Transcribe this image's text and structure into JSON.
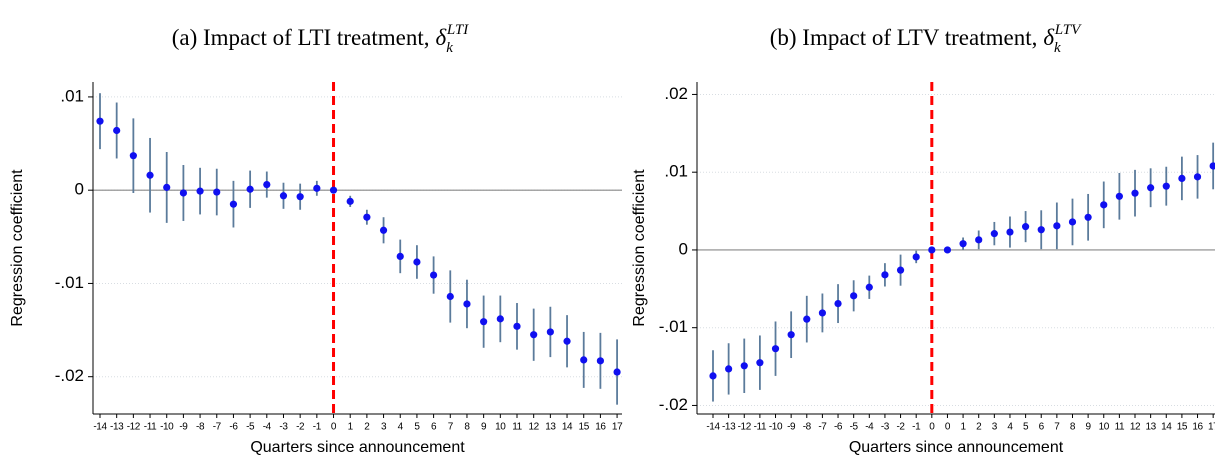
{
  "chart_data": [
    {
      "type": "errorbar",
      "title": "(a) Impact of LTI treatment,",
      "title_symbol": "δ",
      "title_sub": "k",
      "title_sup": "LTI",
      "xlabel": "Quarters since announcement",
      "ylabel": "Regression coefficient",
      "categories": [
        "-14",
        "-13",
        "-12",
        "-11",
        "-10",
        "-9",
        "-8",
        "-7",
        "-6",
        "-5",
        "-4",
        "-3",
        "-2",
        "-1",
        "0",
        "1",
        "2",
        "3",
        "4",
        "5",
        "6",
        "7",
        "8",
        "9",
        "10",
        "11",
        "12",
        "13",
        "14",
        "15",
        "16",
        "17"
      ],
      "values": [
        0.0074,
        0.0064,
        0.0037,
        0.0016,
        0.0003,
        -0.0003,
        -0.0001,
        -0.0002,
        -0.0015,
        0.0001,
        0.0006,
        -0.0006,
        -0.0007,
        0.0002,
        0,
        -0.0012,
        -0.0029,
        -0.0043,
        -0.0071,
        -0.0077,
        -0.0091,
        -0.0114,
        -0.0122,
        -0.0141,
        -0.0138,
        -0.0146,
        -0.0155,
        -0.0152,
        -0.0162,
        -0.0182,
        -0.0183,
        -0.0195
      ],
      "errors": [
        0.003,
        0.003,
        0.004,
        0.004,
        0.0038,
        0.003,
        0.0025,
        0.0025,
        0.0025,
        0.002,
        0.0014,
        0.0014,
        0.0014,
        0.0008,
        0,
        0.0006,
        0.0008,
        0.0014,
        0.0018,
        0.0018,
        0.002,
        0.0028,
        0.0026,
        0.0028,
        0.0025,
        0.0025,
        0.0028,
        0.0027,
        0.0028,
        0.003,
        0.003,
        0.0035
      ],
      "ylim": [
        -0.024,
        0.0116
      ],
      "yticks": [
        {
          "value": 0.01,
          "label": ".01"
        },
        0,
        {
          "value": -0.01,
          "label": "-.01"
        },
        {
          "value": -0.02,
          "label": "-.02"
        }
      ],
      "hline": 0,
      "vline_category": 14,
      "grid": true,
      "point_color": "#1010f0",
      "error_color": "#5b7b9b",
      "vline_color": "#ff0000"
    },
    {
      "type": "errorbar",
      "title": "(b) Impact of LTV treatment,",
      "title_symbol": "δ",
      "title_sub": "k",
      "title_sup": "LTV",
      "xlabel": "Quarters since announcement",
      "ylabel": "Regression coefficient",
      "categories": [
        "-14",
        "-13",
        "-12",
        "-11",
        "-10",
        "-9",
        "-8",
        "-7",
        "-6",
        "-5",
        "-4",
        "-3",
        "-2",
        "-1",
        "0",
        "0",
        "1",
        "2",
        "3",
        "4",
        "5",
        "6",
        "7",
        "8",
        "9",
        "10",
        "11",
        "12",
        "13",
        "14",
        "15",
        "16",
        "17"
      ],
      "values": [
        -0.0162,
        -0.0153,
        -0.0149,
        -0.0145,
        -0.0127,
        -0.0109,
        -0.0089,
        -0.0081,
        -0.0069,
        -0.0059,
        -0.0048,
        -0.0032,
        -0.0026,
        -0.0009,
        0,
        0,
        0.0008,
        0.0013,
        0.0021,
        0.0023,
        0.003,
        0.0026,
        0.0031,
        0.0036,
        0.0042,
        0.0058,
        0.0069,
        0.0073,
        0.008,
        0.0082,
        0.0092,
        0.0094,
        0.0108
      ],
      "errors": [
        0.0033,
        0.0033,
        0.0035,
        0.0035,
        0.0035,
        0.003,
        0.003,
        0.0025,
        0.0025,
        0.002,
        0.0015,
        0.0015,
        0.002,
        0.0008,
        0,
        0,
        0.0008,
        0.0012,
        0.0015,
        0.002,
        0.002,
        0.0025,
        0.003,
        0.003,
        0.003,
        0.003,
        0.003,
        0.003,
        0.0025,
        0.0025,
        0.0028,
        0.0028,
        0.003
      ],
      "ylim": [
        -0.0211,
        0.0216
      ],
      "yticks": [
        {
          "value": 0.02,
          "label": ".02"
        },
        {
          "value": 0.01,
          "label": ".01"
        },
        0,
        {
          "value": -0.01,
          "label": "-.01"
        },
        {
          "value": -0.02,
          "label": "-.02"
        }
      ],
      "hline": 0,
      "vline_category": 14,
      "grid": true,
      "point_color": "#1010f0",
      "error_color": "#5b7b9b",
      "vline_color": "#ff0000"
    }
  ]
}
